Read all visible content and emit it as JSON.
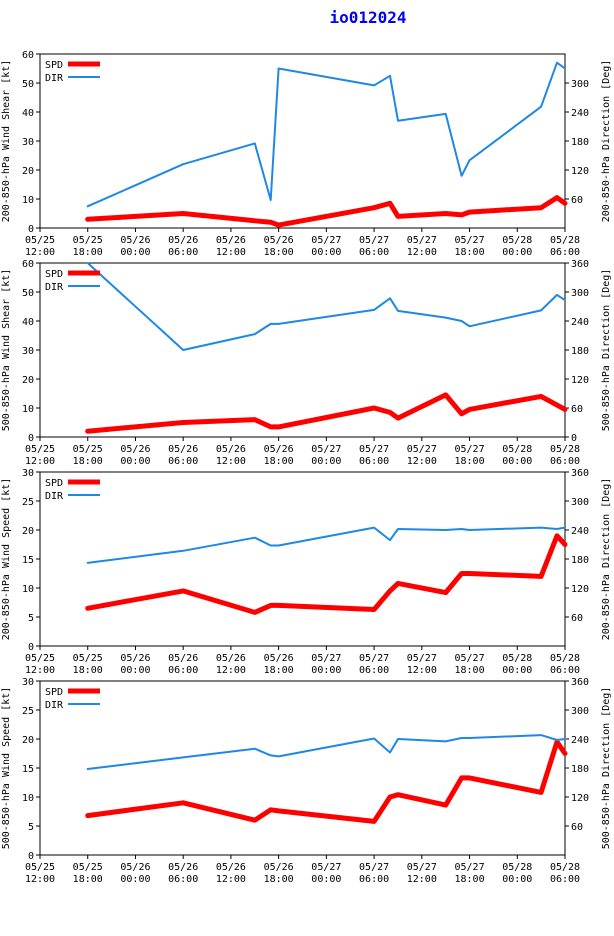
{
  "title": "io012024",
  "colors": {
    "spd": "#ff0000",
    "dir": "#1e88e5",
    "axis": "#000000",
    "title": "#0000ff"
  },
  "x_ticks": [
    {
      "t": 0,
      "l1": "05/25",
      "l2": "12:00"
    },
    {
      "t": 6,
      "l1": "05/25",
      "l2": "18:00"
    },
    {
      "t": 12,
      "l1": "05/26",
      "l2": "00:00"
    },
    {
      "t": 18,
      "l1": "05/26",
      "l2": "06:00"
    },
    {
      "t": 24,
      "l1": "05/26",
      "l2": "12:00"
    },
    {
      "t": 30,
      "l1": "05/26",
      "l2": "18:00"
    },
    {
      "t": 36,
      "l1": "05/27",
      "l2": "00:00"
    },
    {
      "t": 42,
      "l1": "05/27",
      "l2": "06:00"
    },
    {
      "t": 48,
      "l1": "05/27",
      "l2": "12:00"
    },
    {
      "t": 54,
      "l1": "05/27",
      "l2": "18:00"
    },
    {
      "t": 60,
      "l1": "05/28",
      "l2": "00:00"
    },
    {
      "t": 66,
      "l1": "05/28",
      "l2": "06:00"
    }
  ],
  "chart_data": [
    {
      "type": "line",
      "ylabel": "200-850-hPa Wind Shear [kt]",
      "y2label": "200-850-hPa Direction [Deg]",
      "ylim": [
        0,
        60
      ],
      "yticks": [
        0,
        10,
        20,
        30,
        40,
        50,
        60
      ],
      "y2lim": [
        0,
        360
      ],
      "y2ticks": [
        60,
        120,
        180,
        240,
        300
      ],
      "legend": "top-left",
      "series": [
        {
          "name": "SPD",
          "axis": "left",
          "x": [
            6,
            18,
            27,
            29,
            30,
            42,
            44,
            45,
            51,
            53,
            54,
            63,
            65,
            66
          ],
          "y": [
            3,
            5,
            2.5,
            2,
            1,
            7,
            8.5,
            4,
            5,
            4.5,
            5.5,
            7,
            10.5,
            8.5
          ]
        },
        {
          "name": "DIR",
          "axis": "right",
          "x": [
            6,
            18,
            27,
            29,
            30,
            42,
            44,
            45,
            51,
            53,
            54,
            63,
            65,
            66
          ],
          "y": [
            45,
            132,
            175,
            58,
            330,
            295,
            315,
            222,
            236,
            108,
            140,
            251,
            342,
            330
          ]
        }
      ]
    },
    {
      "type": "line",
      "ylabel": "500-850-hPa Wind Shear [kt]",
      "y2label": "500-850-hPa Direction [Deg]",
      "ylim": [
        0,
        60
      ],
      "yticks": [
        0,
        10,
        20,
        30,
        40,
        50,
        60
      ],
      "y2lim": [
        0,
        360
      ],
      "y2ticks": [
        0,
        60,
        120,
        180,
        240,
        300,
        360
      ],
      "legend": "top-left",
      "series": [
        {
          "name": "SPD",
          "axis": "left",
          "x": [
            6,
            18,
            27,
            29,
            30,
            42,
            44,
            45,
            51,
            53,
            54,
            63,
            65,
            66
          ],
          "y": [
            2,
            5,
            6,
            3.5,
            3.5,
            10,
            8.5,
            6.5,
            14.5,
            8,
            9.5,
            14,
            11,
            9.5
          ]
        },
        {
          "name": "DIR",
          "axis": "right",
          "x": [
            6,
            18,
            27,
            29,
            30,
            42,
            44,
            45,
            51,
            53,
            54,
            63,
            65,
            66
          ],
          "y": [
            360,
            180,
            213,
            234,
            234,
            263,
            287,
            261,
            247,
            240,
            229,
            262,
            294,
            283
          ]
        }
      ]
    },
    {
      "type": "line",
      "ylabel": "200-850-hPa Wind Speed [kt]",
      "y2label": "200-850-hPa Direction [Deg]",
      "ylim": [
        0,
        30
      ],
      "yticks": [
        0,
        5,
        10,
        15,
        20,
        25,
        30
      ],
      "y2lim": [
        0,
        360
      ],
      "y2ticks": [
        60,
        120,
        180,
        240,
        300,
        360
      ],
      "legend": "top-left",
      "series": [
        {
          "name": "SPD",
          "axis": "left",
          "x": [
            6,
            18,
            27,
            29,
            30,
            42,
            44,
            45,
            51,
            53,
            54,
            63,
            65,
            66
          ],
          "y": [
            6.5,
            9.5,
            5.8,
            7,
            7,
            6.3,
            9.5,
            10.8,
            9.2,
            12.5,
            12.5,
            12,
            19,
            17.5
          ]
        },
        {
          "name": "DIR",
          "axis": "right",
          "x": [
            6,
            18,
            27,
            29,
            30,
            42,
            44,
            45,
            51,
            53,
            54,
            63,
            65,
            66
          ],
          "y": [
            172,
            197,
            224,
            208,
            208,
            245,
            219,
            242,
            240,
            242,
            240,
            245,
            242,
            245
          ]
        }
      ]
    },
    {
      "type": "line",
      "ylabel": "500-850-hPa Wind Speed [kt]",
      "y2label": "500-850-hPa Direction [Deg]",
      "ylim": [
        0,
        30
      ],
      "yticks": [
        0,
        5,
        10,
        15,
        20,
        25,
        30
      ],
      "y2lim": [
        0,
        360
      ],
      "y2ticks": [
        60,
        120,
        180,
        240,
        300,
        360
      ],
      "legend": "top-left",
      "series": [
        {
          "name": "SPD",
          "axis": "left",
          "x": [
            6,
            18,
            27,
            29,
            30,
            42,
            44,
            45,
            51,
            53,
            54,
            63,
            65,
            66
          ],
          "y": [
            6.8,
            9,
            6,
            7.8,
            7.6,
            5.8,
            10,
            10.4,
            8.6,
            13.3,
            13.3,
            10.8,
            19.5,
            17.5
          ]
        },
        {
          "name": "DIR",
          "axis": "right",
          "x": [
            6,
            18,
            27,
            29,
            30,
            42,
            44,
            45,
            51,
            53,
            54,
            63,
            65,
            66
          ],
          "y": [
            178,
            202,
            220,
            206,
            204,
            241,
            212,
            240,
            235,
            242,
            242,
            248,
            238,
            240
          ]
        }
      ]
    }
  ]
}
